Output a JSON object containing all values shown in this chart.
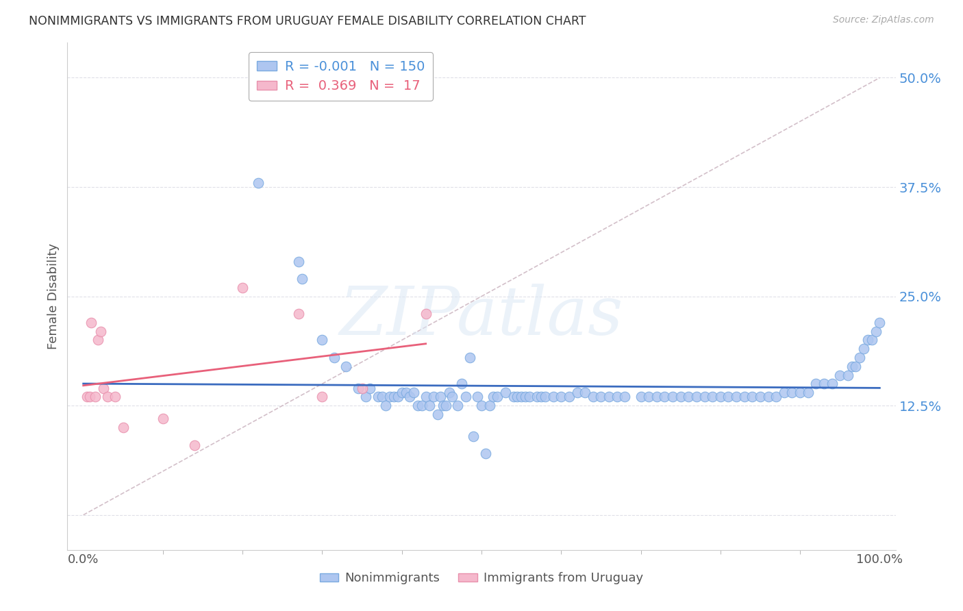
{
  "title": "NONIMMIGRANTS VS IMMIGRANTS FROM URUGUAY FEMALE DISABILITY CORRELATION CHART",
  "source": "Source: ZipAtlas.com",
  "ylabel": "Female Disability",
  "xlim": [
    -0.02,
    1.02
  ],
  "ylim": [
    -0.04,
    0.54
  ],
  "yticks": [
    0.0,
    0.125,
    0.25,
    0.375,
    0.5
  ],
  "ytick_labels": [
    "",
    "12.5%",
    "25.0%",
    "37.5%",
    "50.0%"
  ],
  "xticks": [
    0.0,
    1.0
  ],
  "xtick_labels": [
    "0.0%",
    "100.0%"
  ],
  "background_color": "#ffffff",
  "watermark_text": "ZIPatlas",
  "blue_color": "#aec6f0",
  "blue_edge": "#7aaae0",
  "pink_color": "#f5b8cc",
  "pink_edge": "#e890ac",
  "line_blue": "#3a6bbf",
  "line_pink": "#e8607a",
  "line_diag_color": "#c8b0bc",
  "tick_color": "#4a90d9",
  "legend_R_blue": "-0.001",
  "legend_N_blue": "150",
  "legend_R_pink": "0.369",
  "legend_N_pink": "17",
  "blue_x": [
    0.22,
    0.27,
    0.275,
    0.3,
    0.315,
    0.33,
    0.345,
    0.355,
    0.36,
    0.37,
    0.375,
    0.38,
    0.385,
    0.39,
    0.395,
    0.4,
    0.405,
    0.41,
    0.415,
    0.42,
    0.425,
    0.43,
    0.435,
    0.44,
    0.445,
    0.448,
    0.452,
    0.455,
    0.46,
    0.463,
    0.47,
    0.475,
    0.48,
    0.485,
    0.49,
    0.495,
    0.5,
    0.505,
    0.51,
    0.515,
    0.52,
    0.53,
    0.54,
    0.545,
    0.55,
    0.555,
    0.56,
    0.57,
    0.575,
    0.58,
    0.59,
    0.6,
    0.61,
    0.62,
    0.63,
    0.64,
    0.65,
    0.66,
    0.67,
    0.68,
    0.7,
    0.71,
    0.72,
    0.73,
    0.74,
    0.75,
    0.76,
    0.77,
    0.78,
    0.79,
    0.8,
    0.81,
    0.82,
    0.83,
    0.84,
    0.85,
    0.86,
    0.87,
    0.88,
    0.89,
    0.9,
    0.91,
    0.92,
    0.93,
    0.94,
    0.95,
    0.96,
    0.965,
    0.97,
    0.975,
    0.98,
    0.985,
    0.99,
    0.995,
    1.0
  ],
  "blue_y": [
    0.38,
    0.29,
    0.27,
    0.2,
    0.18,
    0.17,
    0.145,
    0.135,
    0.145,
    0.135,
    0.135,
    0.125,
    0.135,
    0.135,
    0.135,
    0.14,
    0.14,
    0.135,
    0.14,
    0.125,
    0.125,
    0.135,
    0.125,
    0.135,
    0.115,
    0.135,
    0.125,
    0.125,
    0.14,
    0.135,
    0.125,
    0.15,
    0.135,
    0.18,
    0.09,
    0.135,
    0.125,
    0.07,
    0.125,
    0.135,
    0.135,
    0.14,
    0.135,
    0.135,
    0.135,
    0.135,
    0.135,
    0.135,
    0.135,
    0.135,
    0.135,
    0.135,
    0.135,
    0.14,
    0.14,
    0.135,
    0.135,
    0.135,
    0.135,
    0.135,
    0.135,
    0.135,
    0.135,
    0.135,
    0.135,
    0.135,
    0.135,
    0.135,
    0.135,
    0.135,
    0.135,
    0.135,
    0.135,
    0.135,
    0.135,
    0.135,
    0.135,
    0.135,
    0.14,
    0.14,
    0.14,
    0.14,
    0.15,
    0.15,
    0.15,
    0.16,
    0.16,
    0.17,
    0.17,
    0.18,
    0.19,
    0.2,
    0.2,
    0.21,
    0.22
  ],
  "pink_x": [
    0.005,
    0.008,
    0.01,
    0.015,
    0.018,
    0.022,
    0.025,
    0.03,
    0.04,
    0.05,
    0.1,
    0.14,
    0.2,
    0.27,
    0.3,
    0.35,
    0.43
  ],
  "pink_y": [
    0.135,
    0.135,
    0.22,
    0.135,
    0.2,
    0.21,
    0.145,
    0.135,
    0.135,
    0.1,
    0.11,
    0.08,
    0.26,
    0.23,
    0.135,
    0.145,
    0.23
  ],
  "grid_color": "#e0e0e8"
}
